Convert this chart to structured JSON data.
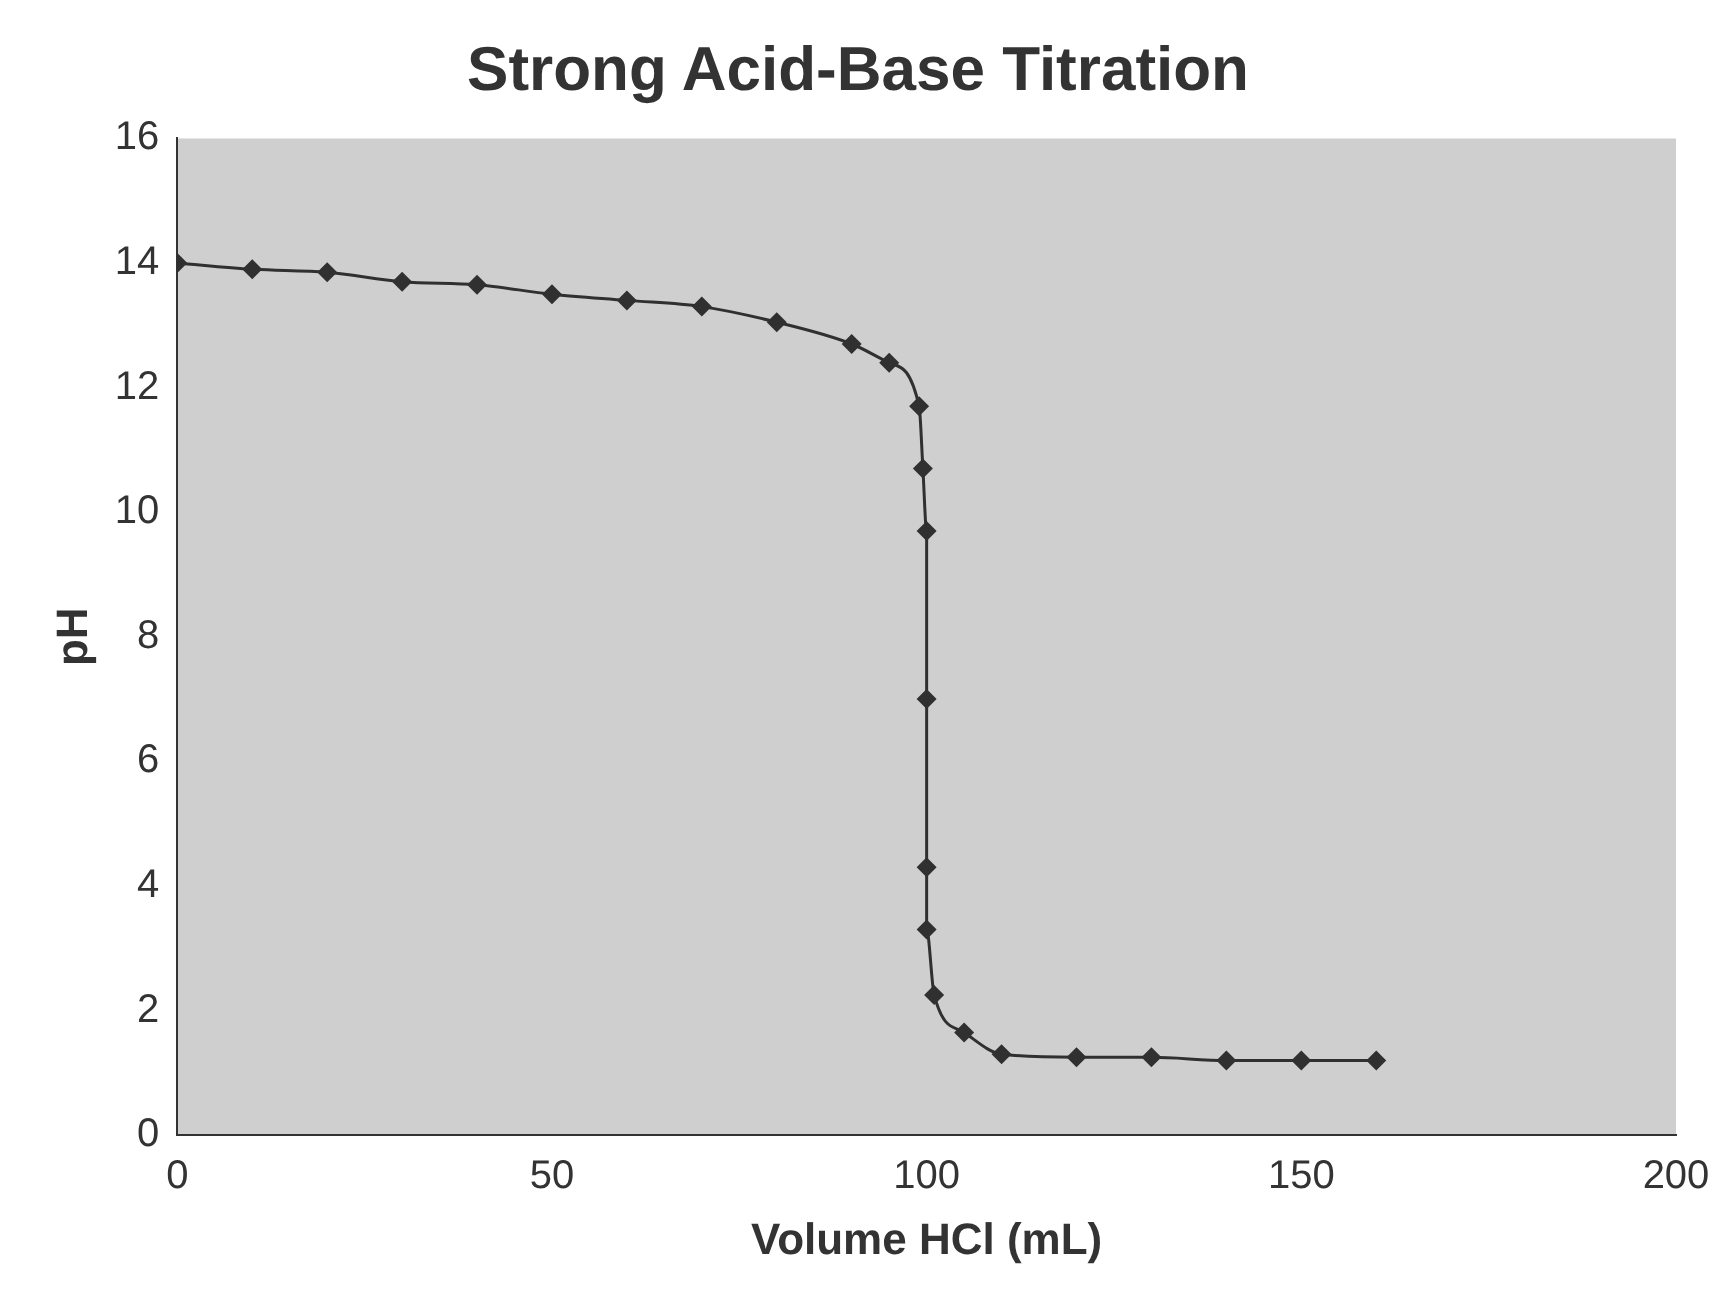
{
  "chart_data": {
    "type": "line",
    "title": "Strong Acid-Base Titration",
    "xlabel": "Volume HCl (mL)",
    "ylabel": "pH",
    "x": [
      0,
      10,
      20,
      30,
      40,
      50,
      60,
      70,
      80,
      90,
      95,
      99,
      99.5,
      100,
      100,
      100,
      100,
      101,
      105,
      110,
      120,
      130,
      140,
      150,
      160
    ],
    "series": [
      {
        "color": "#303030",
        "values": [
          14.0,
          13.9,
          13.85,
          13.7,
          13.65,
          13.5,
          13.4,
          13.3,
          13.05,
          12.7,
          12.4,
          11.7,
          10.7,
          9.7,
          7.0,
          4.3,
          3.3,
          2.25,
          1.65,
          1.3,
          1.25,
          1.25,
          1.2,
          1.2,
          1.2
        ]
      }
    ],
    "xlim": [
      0,
      200
    ],
    "xticks": [
      0,
      50,
      100,
      150,
      200
    ],
    "ylim": [
      0,
      16
    ],
    "yticks": [
      0,
      2,
      4,
      6,
      8,
      10,
      12,
      14,
      16
    ],
    "grid": false,
    "legend": false,
    "marker": "diamond",
    "line_style": "solid"
  }
}
